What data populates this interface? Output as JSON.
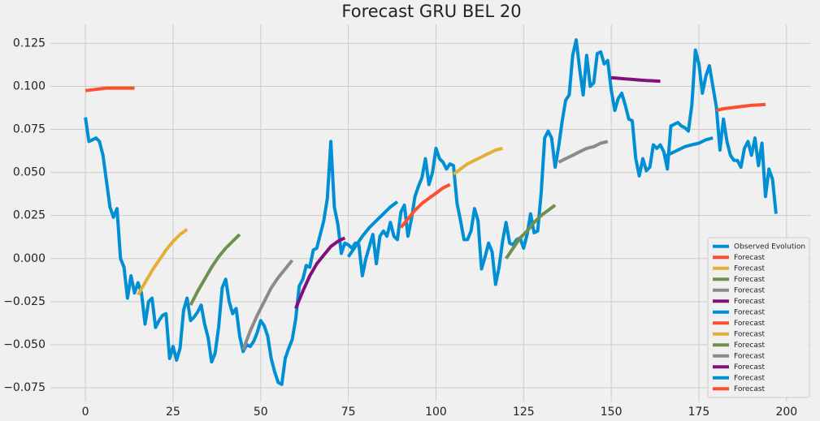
{
  "chart_data": {
    "type": "line",
    "title": "Forecast GRU BEL 20",
    "xlim": [
      -10,
      207
    ],
    "ylim": [
      -0.083,
      0.136
    ],
    "xticks": [
      0,
      25,
      50,
      75,
      100,
      125,
      150,
      175,
      200
    ],
    "yticks": [
      {
        "value": -0.075,
        "label": "−0.075"
      },
      {
        "value": -0.05,
        "label": "−0.050"
      },
      {
        "value": -0.025,
        "label": "−0.025"
      },
      {
        "value": 0,
        "label": "0.000"
      },
      {
        "value": 0.025,
        "label": "0.025"
      },
      {
        "value": 0.05,
        "label": "0.050"
      },
      {
        "value": 0.075,
        "label": "0.075"
      },
      {
        "value": 0.1,
        "label": "0.100"
      },
      {
        "value": 0.125,
        "label": "0.125"
      }
    ],
    "grid": true,
    "legend": "lower right",
    "series": [
      {
        "name": "Observed Evolution",
        "color": "#008fd5",
        "x": [
          0,
          1,
          2,
          3,
          4,
          5,
          6,
          7,
          8,
          9,
          10,
          11,
          12,
          13,
          14,
          15,
          16,
          17,
          18,
          19,
          20,
          21,
          22,
          23,
          24,
          25,
          26,
          27,
          28,
          29,
          30,
          31,
          32,
          33,
          34,
          35,
          36,
          37,
          38,
          39,
          40,
          41,
          42,
          43,
          44,
          45,
          46,
          47,
          48,
          49,
          50,
          51,
          52,
          53,
          54,
          55,
          56,
          57,
          58,
          59,
          60,
          61,
          62,
          63,
          64,
          65,
          66,
          67,
          68,
          69,
          70,
          71,
          72,
          73,
          74,
          75,
          76,
          77,
          78,
          79,
          80,
          81,
          82,
          83,
          84,
          85,
          86,
          87,
          88,
          89,
          90,
          91,
          92,
          93,
          94,
          95,
          96,
          97,
          98,
          99,
          100,
          101,
          102,
          103,
          104,
          105,
          106,
          107,
          108,
          109,
          110,
          111,
          112,
          113,
          114,
          115,
          116,
          117,
          118,
          119,
          120,
          121,
          122,
          123,
          124,
          125,
          126,
          127,
          128,
          129,
          130,
          131,
          132,
          133,
          134,
          135,
          136,
          137,
          138,
          139,
          140,
          141,
          142,
          143,
          144,
          145,
          146,
          147,
          148,
          149,
          150,
          151,
          152,
          153,
          154,
          155,
          156,
          157,
          158,
          159,
          160,
          161,
          162,
          163,
          164,
          165,
          166,
          167,
          168,
          169,
          170,
          171,
          172,
          173,
          174,
          175,
          176,
          177,
          178,
          179,
          180,
          181,
          182,
          183,
          184,
          185,
          186,
          187,
          188,
          189,
          190,
          191,
          192,
          193,
          194,
          195,
          196,
          197
        ],
        "values": [
          0.082,
          0.068,
          0.069,
          0.07,
          0.068,
          0.06,
          0.045,
          0.03,
          0.024,
          0.029,
          0.0,
          -0.005,
          -0.023,
          -0.01,
          -0.02,
          -0.014,
          -0.02,
          -0.038,
          -0.025,
          -0.023,
          -0.04,
          -0.036,
          -0.033,
          -0.032,
          -0.058,
          -0.051,
          -0.059,
          -0.052,
          -0.03,
          -0.023,
          -0.036,
          -0.034,
          -0.031,
          -0.027,
          -0.038,
          -0.046,
          -0.06,
          -0.055,
          -0.04,
          -0.017,
          -0.012,
          -0.025,
          -0.032,
          -0.029,
          -0.045,
          -0.054,
          -0.05,
          -0.051,
          -0.048,
          -0.043,
          -0.036,
          -0.039,
          -0.045,
          -0.058,
          -0.066,
          -0.072,
          -0.073,
          -0.058,
          -0.052,
          -0.047,
          -0.035,
          -0.016,
          -0.012,
          -0.004,
          -0.005,
          0.005,
          0.006,
          0.014,
          0.022,
          0.035,
          0.068,
          0.03,
          0.02,
          0.003,
          0.009,
          0.008,
          0.006,
          0.009,
          0.008,
          -0.01,
          0.0,
          0.007,
          0.014,
          -0.003,
          0.013,
          0.016,
          0.013,
          0.021,
          0.013,
          0.011,
          0.027,
          0.031,
          0.013,
          0.023,
          0.036,
          0.042,
          0.047,
          0.058,
          0.043,
          0.05,
          0.064,
          0.058,
          0.056,
          0.052,
          0.055,
          0.054,
          0.032,
          0.022,
          0.011,
          0.011,
          0.016,
          0.029,
          0.022,
          -0.006,
          0.001,
          0.009,
          0.004,
          -0.015,
          -0.005,
          0.01,
          0.021,
          0.009,
          0.008,
          0.011,
          0.012,
          0.006,
          0.014,
          0.026,
          0.015,
          0.016,
          0.038,
          0.07,
          0.074,
          0.07,
          0.053,
          0.065,
          0.08,
          0.092,
          0.095,
          0.118,
          0.127,
          0.11,
          0.095,
          0.118,
          0.1,
          0.102,
          0.119,
          0.12,
          0.113,
          0.115,
          0.098,
          0.086,
          0.093,
          0.096,
          0.089,
          0.081,
          0.08,
          0.058,
          0.048,
          0.058,
          0.051,
          0.053,
          0.066,
          0.064,
          0.066,
          0.062,
          0.052,
          0.077,
          0.078,
          0.079,
          0.077,
          0.076,
          0.074,
          0.089,
          0.121,
          0.113,
          0.096,
          0.106,
          0.112,
          0.1,
          0.088,
          0.063,
          0.081,
          0.068,
          0.06,
          0.057,
          0.057,
          0.053,
          0.064,
          0.068,
          0.06,
          0.07,
          0.054,
          0.067,
          0.036,
          0.052,
          0.046,
          0.026
        ]
      },
      {
        "name": "Forecast",
        "color": "#fc4f30",
        "x": [
          0,
          2,
          4,
          6,
          8,
          10,
          12,
          14
        ],
        "values": [
          0.0975,
          0.098,
          0.0985,
          0.099,
          0.099,
          0.099,
          0.099,
          0.099
        ]
      },
      {
        "name": "Forecast",
        "color": "#e5ae38",
        "x": [
          15,
          17,
          19,
          21,
          23,
          25,
          27,
          29
        ],
        "values": [
          -0.021,
          -0.014,
          -0.007,
          -0.001,
          0.005,
          0.01,
          0.014,
          0.017
        ]
      },
      {
        "name": "Forecast",
        "color": "#6d904f",
        "x": [
          30,
          32,
          34,
          36,
          38,
          40,
          42,
          44
        ],
        "values": [
          -0.027,
          -0.019,
          -0.012,
          -0.005,
          0.001,
          0.006,
          0.01,
          0.014
        ]
      },
      {
        "name": "Forecast",
        "color": "#8b8b8b",
        "x": [
          45,
          47,
          49,
          51,
          53,
          55,
          57,
          59
        ],
        "values": [
          -0.053,
          -0.042,
          -0.033,
          -0.025,
          -0.017,
          -0.011,
          -0.006,
          -0.001
        ]
      },
      {
        "name": "Forecast",
        "color": "#810f7c",
        "x": [
          60,
          62,
          64,
          66,
          68,
          70,
          72,
          74
        ],
        "values": [
          -0.029,
          -0.019,
          -0.01,
          -0.003,
          0.002,
          0.007,
          0.01,
          0.012
        ]
      },
      {
        "name": "Forecast",
        "color": "#008fd5",
        "x": [
          75,
          77,
          79,
          81,
          83,
          85,
          87,
          89
        ],
        "values": [
          0.001,
          0.007,
          0.013,
          0.018,
          0.022,
          0.026,
          0.03,
          0.033
        ]
      },
      {
        "name": "Forecast",
        "color": "#fc4f30",
        "x": [
          90,
          92,
          94,
          96,
          98,
          100,
          102,
          104
        ],
        "values": [
          0.018,
          0.023,
          0.028,
          0.032,
          0.035,
          0.038,
          0.041,
          0.043
        ]
      },
      {
        "name": "Forecast",
        "color": "#e5ae38",
        "x": [
          105,
          107,
          109,
          111,
          113,
          115,
          117,
          119
        ],
        "values": [
          0.049,
          0.052,
          0.055,
          0.057,
          0.059,
          0.061,
          0.063,
          0.064
        ]
      },
      {
        "name": "Forecast",
        "color": "#6d904f",
        "x": [
          120,
          122,
          124,
          126,
          128,
          130,
          132,
          134
        ],
        "values": [
          0.0,
          0.006,
          0.012,
          0.016,
          0.021,
          0.025,
          0.028,
          0.031
        ]
      },
      {
        "name": "Forecast",
        "color": "#8b8b8b",
        "x": [
          135,
          137,
          139,
          141,
          143,
          145,
          147,
          149
        ],
        "values": [
          0.056,
          0.058,
          0.06,
          0.062,
          0.064,
          0.065,
          0.067,
          0.068
        ]
      },
      {
        "name": "Forecast",
        "color": "#810f7c",
        "x": [
          150,
          152,
          154,
          156,
          158,
          160,
          162,
          164
        ],
        "values": [
          0.105,
          0.1047,
          0.1043,
          0.104,
          0.1037,
          0.1034,
          0.1032,
          0.103
        ]
      },
      {
        "name": "Forecast",
        "color": "#008fd5",
        "x": [
          165,
          167,
          169,
          171,
          173,
          175,
          177,
          179
        ],
        "values": [
          0.059,
          0.061,
          0.063,
          0.065,
          0.066,
          0.067,
          0.069,
          0.07
        ]
      },
      {
        "name": "Forecast",
        "color": "#fc4f30",
        "x": [
          180,
          182,
          184,
          186,
          188,
          190,
          192,
          194
        ],
        "values": [
          0.086,
          0.087,
          0.0875,
          0.088,
          0.0885,
          0.089,
          0.0892,
          0.0895
        ]
      }
    ]
  }
}
